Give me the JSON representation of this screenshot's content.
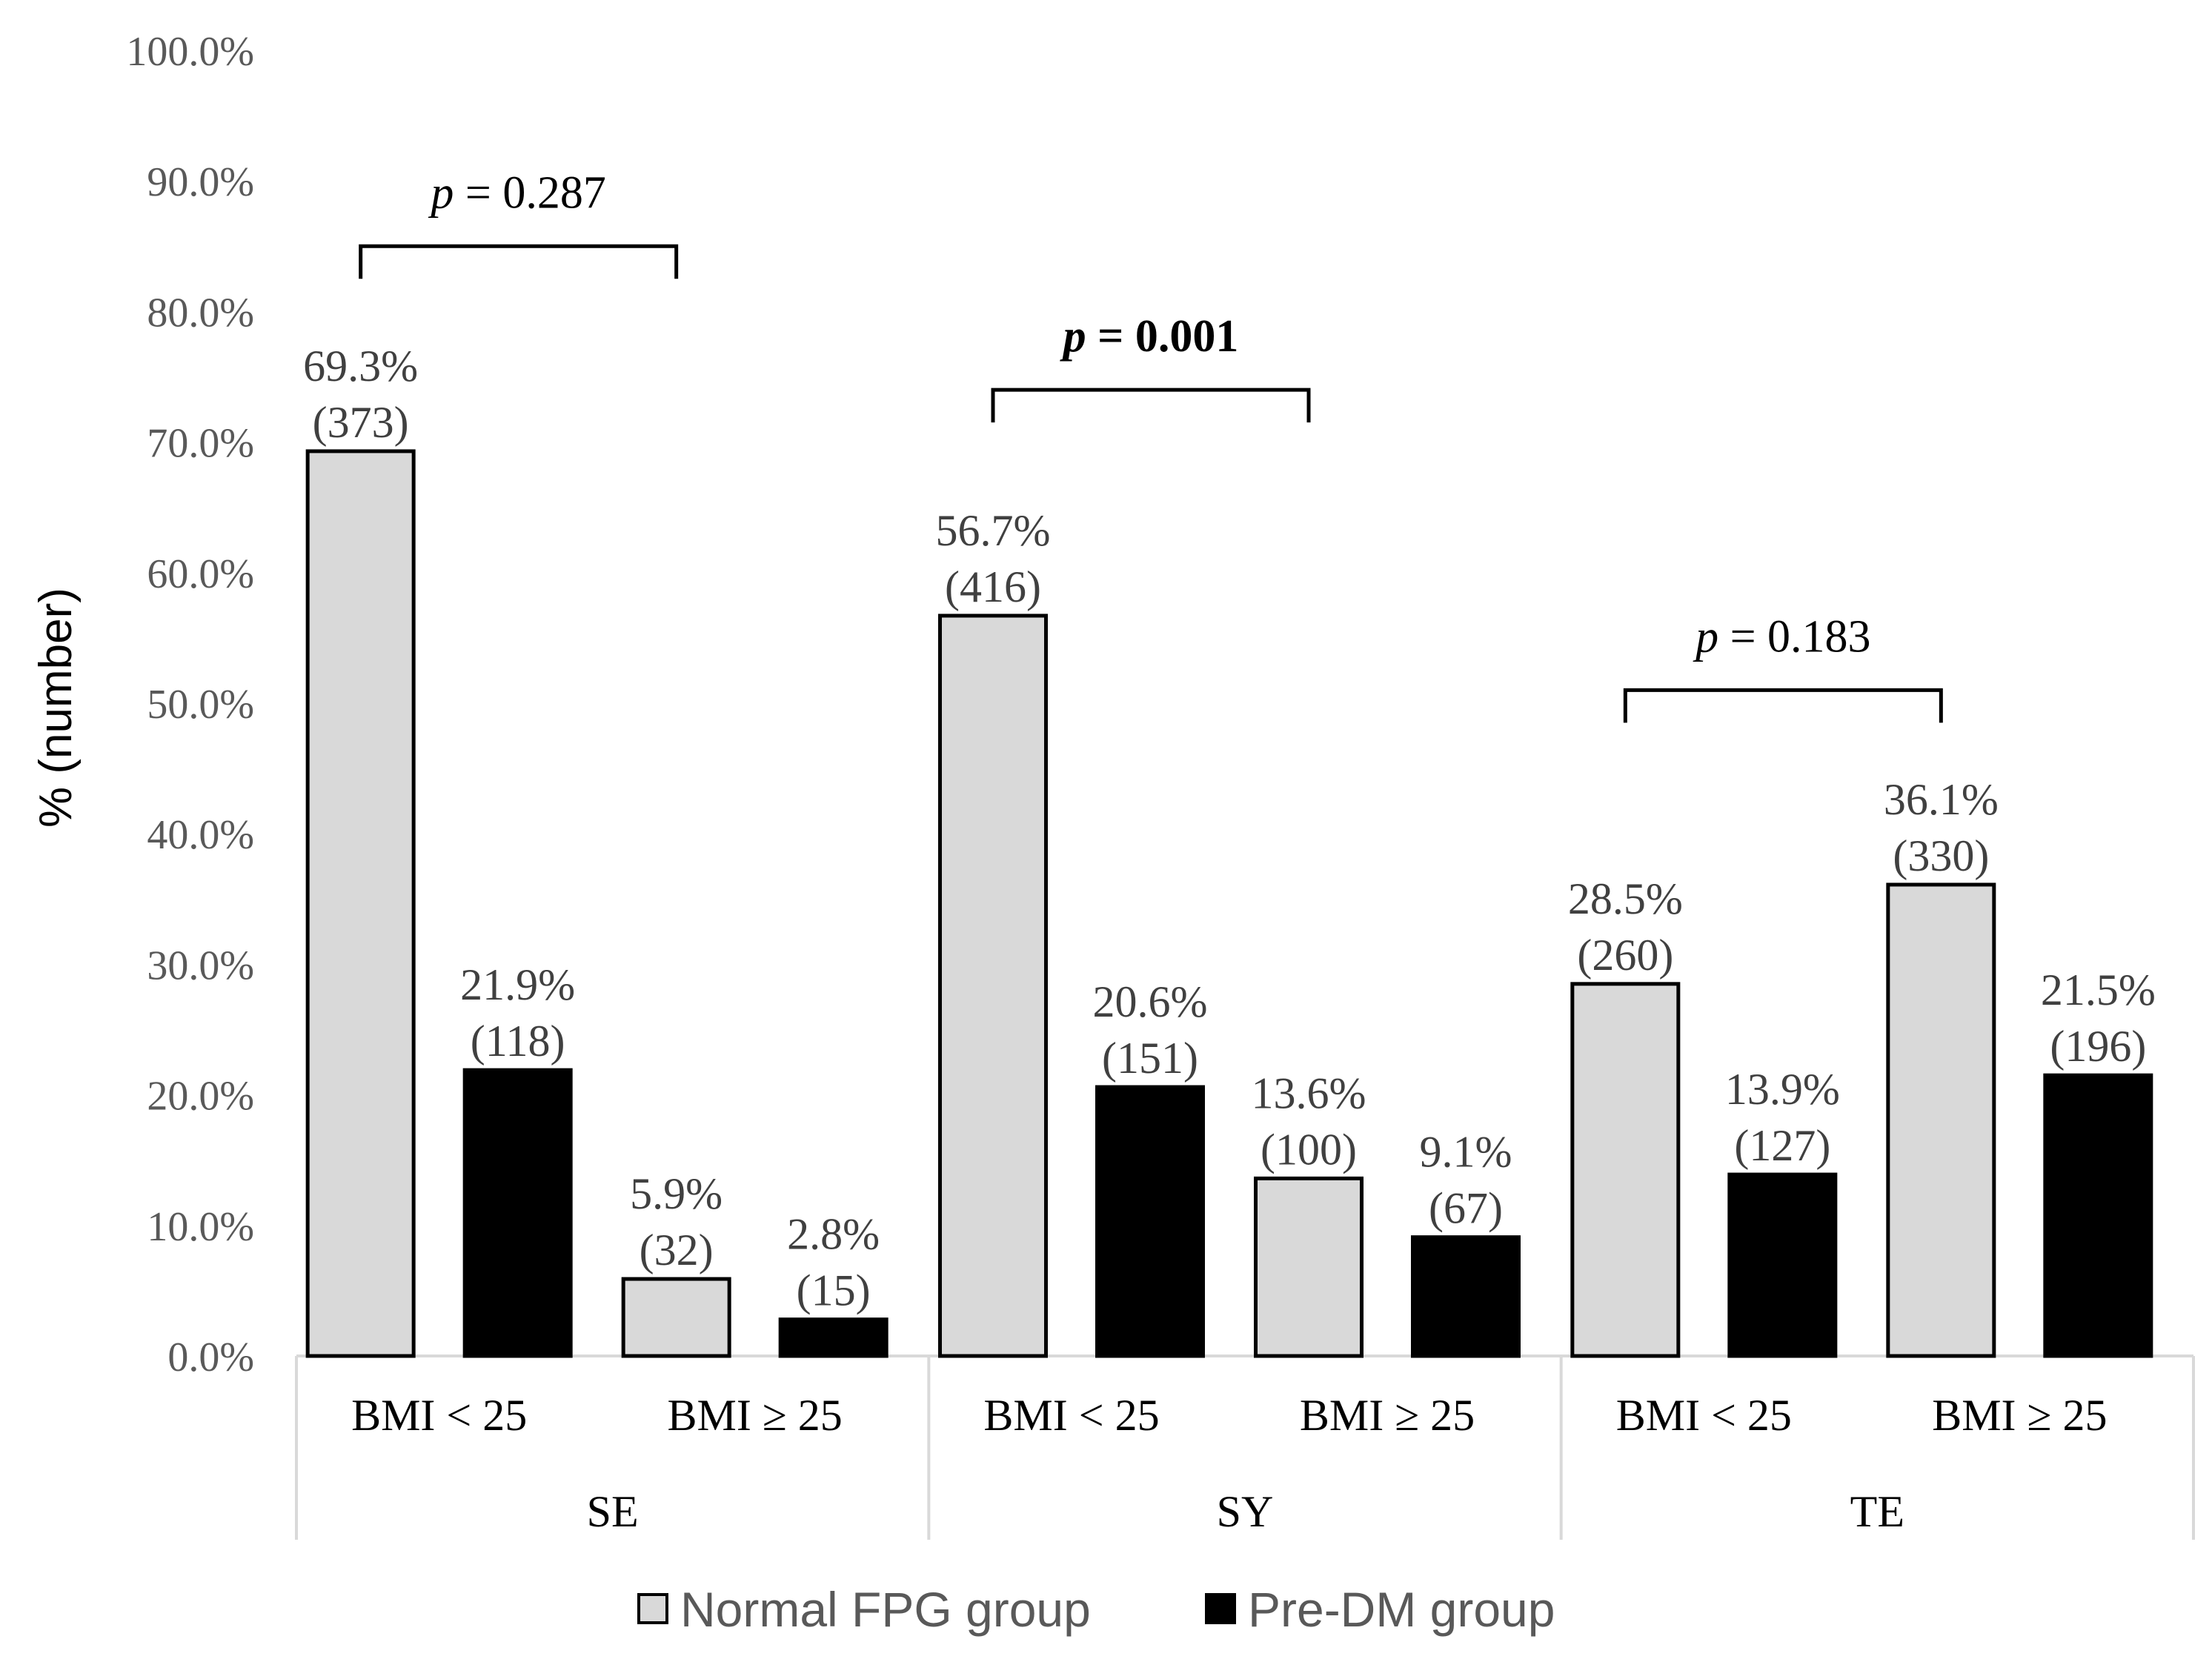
{
  "chart_data": {
    "type": "bar",
    "ylabel": "% (number)",
    "ylim": [
      0,
      100
    ],
    "yticks": [
      "0.0%",
      "10.0%",
      "20.0%",
      "30.0%",
      "40.0%",
      "50.0%",
      "60.0%",
      "70.0%",
      "80.0%",
      "90.0%",
      "100.0%"
    ],
    "groups": [
      {
        "name": "SE",
        "subcategories": [
          "BMI < 25",
          "BMI ≥ 25"
        ]
      },
      {
        "name": "SY",
        "subcategories": [
          "BMI < 25",
          "BMI ≥ 25"
        ]
      },
      {
        "name": "TE",
        "subcategories": [
          "BMI < 25",
          "BMI ≥ 25"
        ]
      }
    ],
    "series": [
      {
        "name": "Normal FPG group",
        "color": "#d9d9d9",
        "values": [
          69.3,
          5.9,
          56.7,
          13.6,
          28.5,
          36.1
        ],
        "labels": [
          "69.3%",
          "5.9%",
          "56.7%",
          "13.6%",
          "28.5%",
          "36.1%"
        ],
        "counts": [
          "(373)",
          "(32)",
          "(416)",
          "(100)",
          "(260)",
          "(330)"
        ]
      },
      {
        "name": "Pre-DM group",
        "color": "#000000",
        "values": [
          21.9,
          2.8,
          20.6,
          9.1,
          13.9,
          21.5
        ],
        "labels": [
          "21.9%",
          "2.8%",
          "20.6%",
          "9.1%",
          "13.9%",
          "21.5%"
        ],
        "counts": [
          "(118)",
          "(15)",
          "(151)",
          "(67)",
          "(127)",
          "(196)"
        ]
      }
    ],
    "annotations": [
      {
        "group": "SE",
        "text_p": "p",
        "text_rest": " = 0.287",
        "bold": false,
        "level": 85
      },
      {
        "group": "SY",
        "text_p": "p",
        "text_rest": " = 0.001",
        "bold": true,
        "level": 74
      },
      {
        "group": "TE",
        "text_p": "p",
        "text_rest": " = 0.183",
        "bold": false,
        "level": 51
      },
      {
        "_note": "level = bracket height in data units (%)"
      }
    ],
    "legend": {
      "position": "bottom",
      "entries": [
        "Normal FPG group",
        "Pre-DM group"
      ]
    }
  }
}
